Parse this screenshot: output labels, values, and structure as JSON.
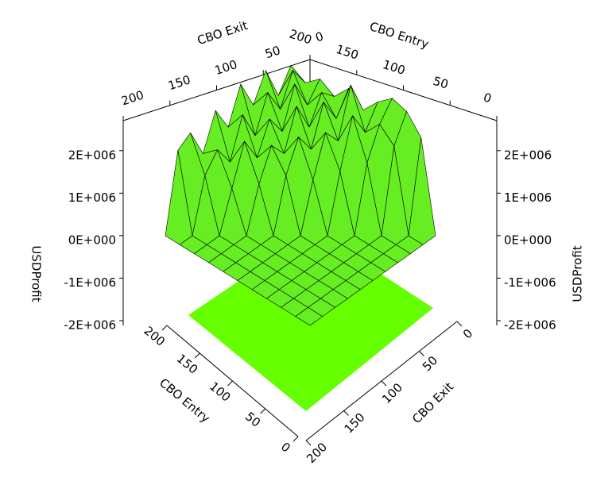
{
  "chart_data": {
    "type": "surface",
    "x_label": "CBO Entry",
    "y_label": "CBO Exit",
    "z_label": "USDProfit",
    "x": [
      0,
      20,
      40,
      60,
      80,
      100,
      120,
      140,
      160,
      180,
      200
    ],
    "y": [
      0,
      20,
      40,
      60,
      80,
      100,
      120,
      140,
      160,
      180,
      200
    ],
    "z": [
      [
        0,
        0,
        0,
        0,
        0,
        0,
        0,
        0,
        0,
        0,
        0
      ],
      [
        2100000,
        0,
        0,
        0,
        0,
        0,
        0,
        0,
        0,
        0,
        0
      ],
      [
        2500000,
        1900000,
        0,
        0,
        0,
        0,
        0,
        0,
        0,
        0,
        0
      ],
      [
        2600000,
        2200000,
        1500000,
        0,
        0,
        0,
        0,
        0,
        0,
        0,
        0
      ],
      [
        2300000,
        1800000,
        2400000,
        1300000,
        0,
        0,
        0,
        0,
        0,
        0,
        0
      ],
      [
        1900000,
        2700000,
        1600000,
        2000000,
        1100000,
        0,
        0,
        0,
        0,
        0,
        0
      ],
      [
        2200000,
        1700000,
        2300000,
        1400000,
        1900000,
        1200000,
        0,
        0,
        0,
        0,
        0
      ],
      [
        1800000,
        2100000,
        1500000,
        2200000,
        1300000,
        1700000,
        1000000,
        0,
        0,
        0,
        0
      ],
      [
        2000000,
        1600000,
        2300000,
        1400000,
        1900000,
        1200000,
        1800000,
        900000,
        0,
        0,
        0
      ],
      [
        1700000,
        2200000,
        1500000,
        2100000,
        1300000,
        2000000,
        1100000,
        1600000,
        1200000,
        0,
        0
      ],
      [
        1900000,
        1400000,
        2200000,
        1600000,
        2300000,
        1500000,
        2100000,
        1300000,
        2000000,
        1800000,
        0
      ]
    ],
    "xlim": [
      0,
      200
    ],
    "xticks": [
      0,
      50,
      100,
      150,
      200
    ],
    "ylim": [
      0,
      200
    ],
    "yticks": [
      0,
      50,
      100,
      150,
      200
    ],
    "zlim": [
      -2000000,
      2500000
    ],
    "zticks": [
      {
        "value": -2000000,
        "label": "-2E+006"
      },
      {
        "value": -1000000,
        "label": "-1E+006"
      },
      {
        "value": 0,
        "label": "0E+000"
      },
      {
        "value": 1000000,
        "label": "1E+006"
      },
      {
        "value": 2000000,
        "label": "2E+006"
      }
    ],
    "color": "#66ee22",
    "floor_color": "#66ff00"
  }
}
